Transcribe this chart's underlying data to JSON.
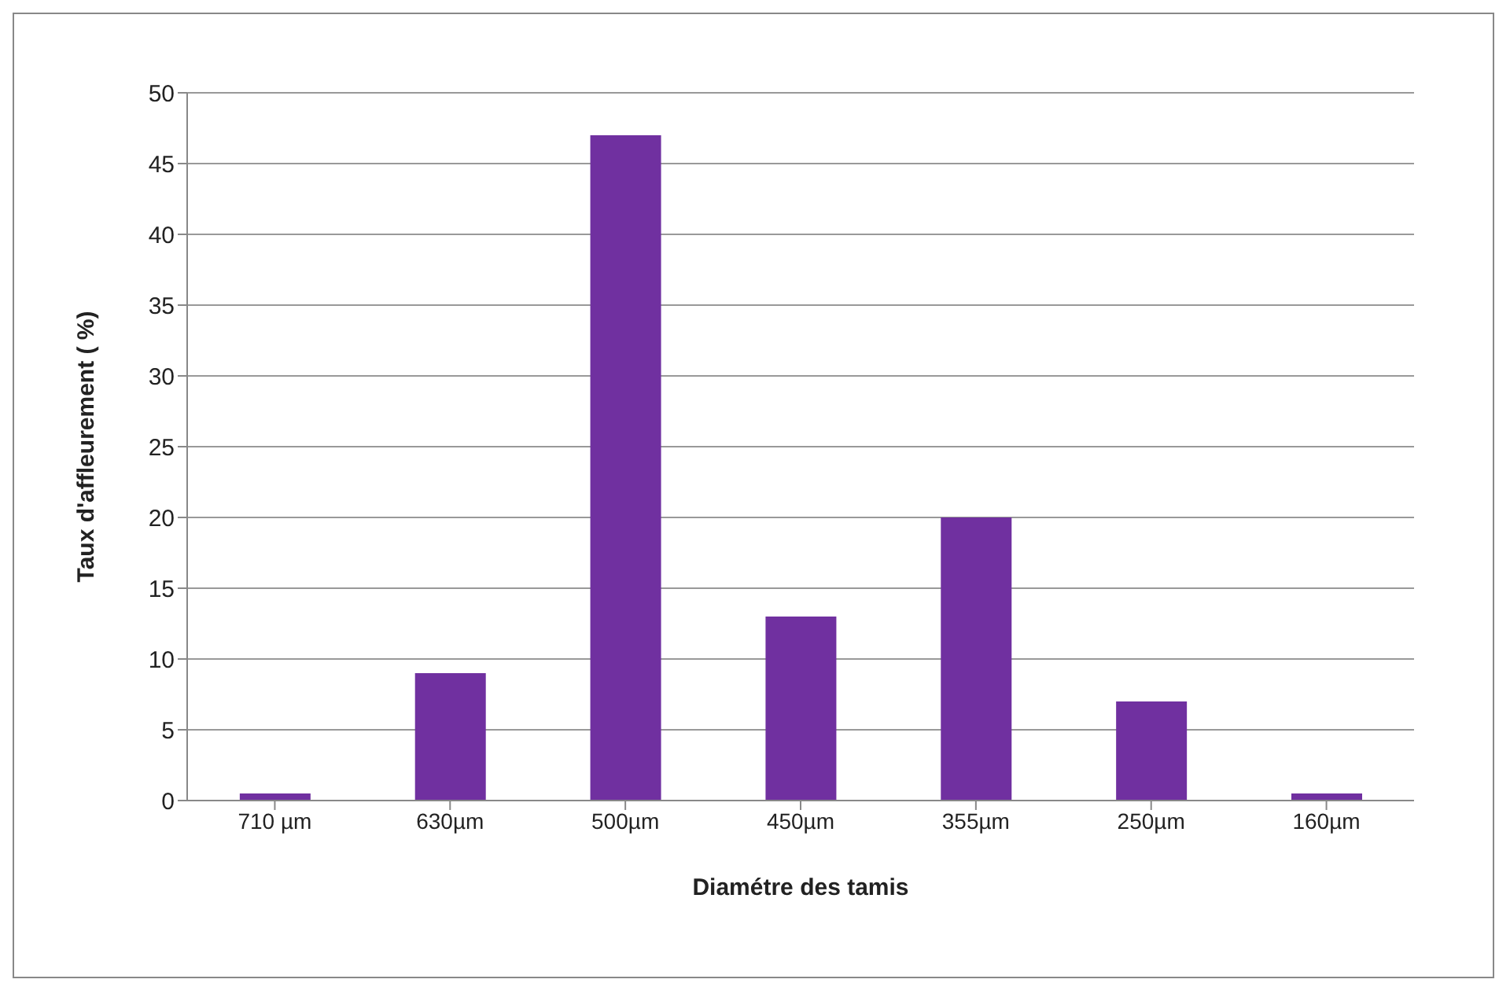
{
  "chart_data": {
    "type": "bar",
    "xlabel": "Diamétre des tamis",
    "ylabel": "Taux d'affleurement ( %)",
    "categories": [
      "710 µm",
      "630µm",
      "500µm",
      "450µm",
      "355µm",
      "250µm",
      "160µm"
    ],
    "values": [
      0.5,
      9,
      47,
      13,
      20,
      7,
      0.5
    ],
    "color": "#7030a0",
    "ylim": [
      0,
      50
    ],
    "yticks": [
      0,
      5,
      10,
      15,
      20,
      25,
      30,
      35,
      40,
      45,
      50
    ],
    "grid": "y"
  }
}
